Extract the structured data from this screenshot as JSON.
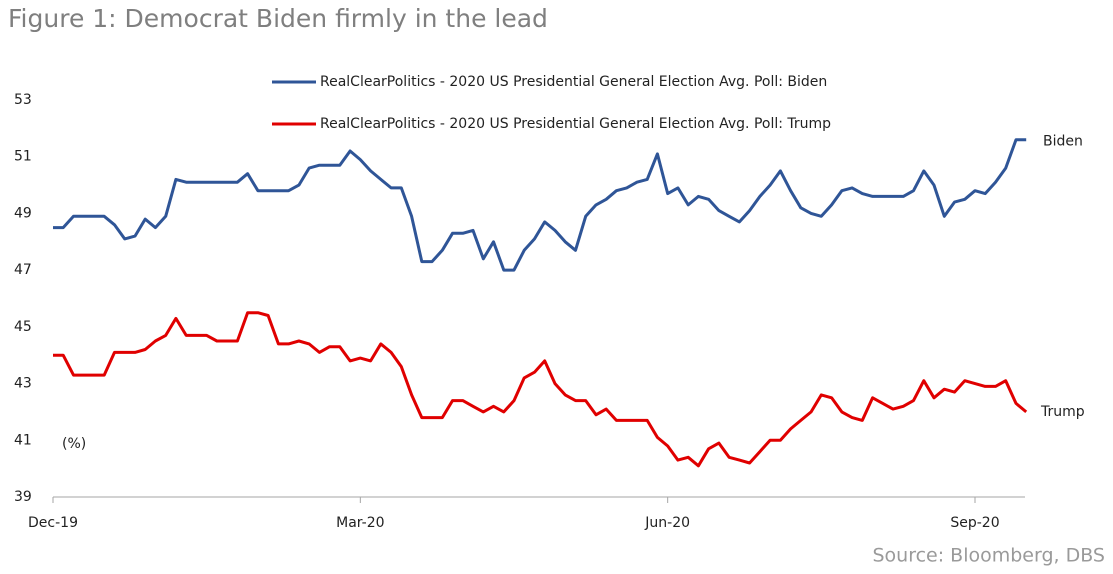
{
  "chart_data": {
    "type": "line",
    "title": "Figure 1: Democrat Biden firmly in the lead",
    "y_unit": "(%)",
    "source": "Source: Bloomberg, DBS",
    "annotations": [
      "Biden",
      "Trump"
    ],
    "categories": [
      "Dec-19",
      null,
      null,
      null,
      null,
      null,
      null,
      null,
      null,
      null,
      null,
      null,
      null,
      null,
      null,
      null,
      null,
      null,
      null,
      null,
      null,
      null,
      null,
      null,
      null,
      null,
      null,
      null,
      null,
      null,
      "Mar-20",
      null,
      null,
      null,
      null,
      null,
      null,
      null,
      null,
      null,
      null,
      null,
      null,
      null,
      null,
      null,
      null,
      null,
      null,
      null,
      null,
      null,
      null,
      null,
      null,
      null,
      null,
      null,
      null,
      null,
      "Jun-20",
      null,
      null,
      null,
      null,
      null,
      null,
      null,
      null,
      null,
      null,
      null,
      null,
      null,
      null,
      null,
      null,
      null,
      null,
      null,
      null,
      null,
      null,
      null,
      null,
      null,
      null,
      null,
      null,
      null,
      "Sep-20",
      null,
      null,
      null,
      null,
      null
    ],
    "series": [
      {
        "name": "RealClearPolitics - 2020 US Presidential General Election Avg. Poll: Biden",
        "color": "#2f5597",
        "values": [
          48.5,
          48.5,
          48.9,
          48.9,
          48.9,
          48.9,
          48.6,
          48.1,
          48.2,
          48.8,
          48.5,
          48.9,
          50.2,
          50.1,
          50.1,
          50.1,
          50.1,
          50.1,
          50.1,
          50.4,
          49.8,
          49.8,
          49.8,
          49.8,
          50.0,
          50.6,
          50.7,
          50.7,
          50.7,
          51.2,
          50.9,
          50.5,
          50.2,
          49.9,
          49.9,
          48.9,
          47.3,
          47.3,
          47.7,
          48.3,
          48.3,
          48.4,
          47.4,
          48.0,
          47.0,
          47.0,
          47.7,
          48.1,
          48.7,
          48.4,
          48.0,
          47.7,
          48.9,
          49.3,
          49.5,
          49.8,
          49.9,
          50.1,
          50.2,
          51.1,
          49.7,
          49.9,
          49.3,
          49.6,
          49.5,
          49.1,
          48.9,
          48.7,
          49.1,
          49.6,
          50.0,
          50.5,
          49.8,
          49.2,
          49.0,
          48.9,
          49.3,
          49.8,
          49.9,
          49.7,
          49.6,
          49.6,
          49.6,
          49.6,
          49.8,
          50.5,
          50.0,
          48.9,
          49.4,
          49.5,
          49.8,
          49.7,
          50.1,
          50.6,
          51.6,
          51.6
        ]
      },
      {
        "name": "RealClearPolitics - 2020 US Presidential General Election Avg. Poll: Trump",
        "color": "#e00000",
        "values": [
          44.0,
          44.0,
          43.3,
          43.3,
          43.3,
          43.3,
          44.1,
          44.1,
          44.1,
          44.2,
          44.5,
          44.7,
          45.3,
          44.7,
          44.7,
          44.7,
          44.5,
          44.5,
          44.5,
          45.5,
          45.5,
          45.4,
          44.4,
          44.4,
          44.5,
          44.4,
          44.1,
          44.3,
          44.3,
          43.8,
          43.9,
          43.8,
          44.4,
          44.1,
          43.6,
          42.6,
          41.8,
          41.8,
          41.8,
          42.4,
          42.4,
          42.2,
          42.0,
          42.2,
          42.0,
          42.4,
          43.2,
          43.4,
          43.8,
          43.0,
          42.6,
          42.4,
          42.4,
          41.9,
          42.1,
          41.7,
          41.7,
          41.7,
          41.7,
          41.1,
          40.8,
          40.3,
          40.4,
          40.1,
          40.7,
          40.9,
          40.4,
          40.3,
          40.2,
          40.6,
          41.0,
          41.0,
          41.4,
          41.7,
          42.0,
          42.6,
          42.5,
          42.0,
          41.8,
          41.7,
          42.5,
          42.3,
          42.1,
          42.2,
          42.4,
          43.1,
          42.5,
          42.8,
          42.7,
          43.1,
          43.0,
          42.9,
          42.9,
          43.1,
          42.3,
          42.0
        ]
      }
    ],
    "ylim": [
      39,
      53
    ],
    "yticks": [
      39,
      41,
      43,
      45,
      47,
      49,
      51,
      53
    ],
    "grid": false
  }
}
